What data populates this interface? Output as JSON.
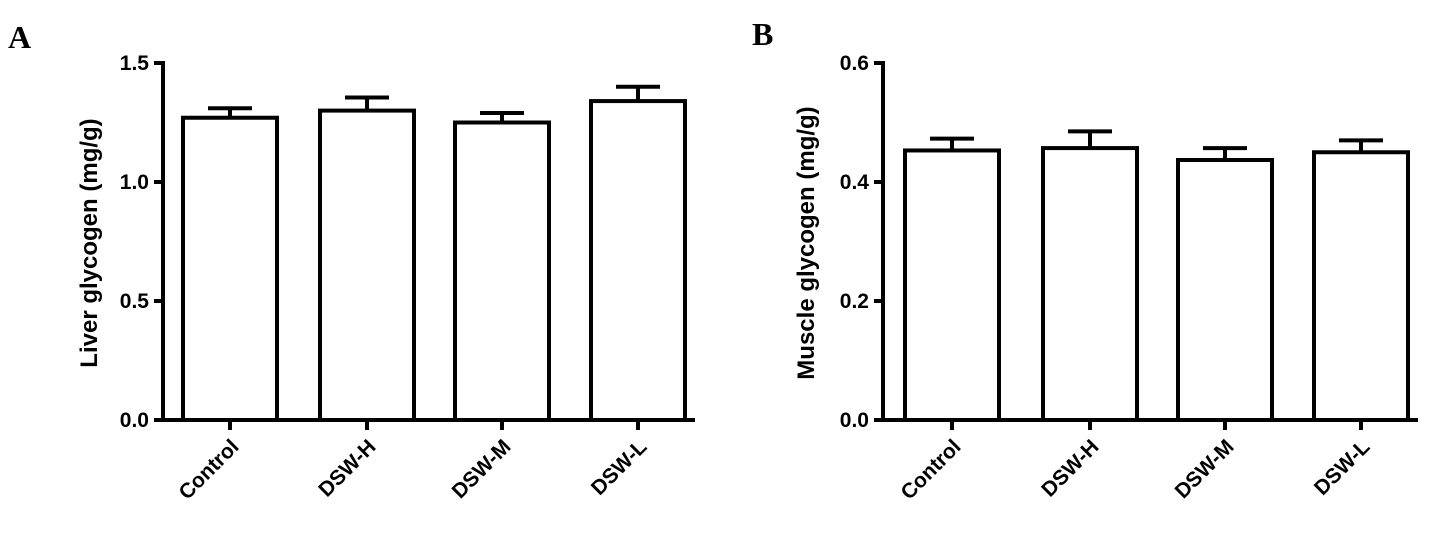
{
  "chart_data": [
    {
      "type": "bar",
      "panel": "A",
      "ylabel": "Liver glycogen (mg/g)",
      "xlabel": "",
      "ylim": [
        0,
        1.5
      ],
      "yticks": [
        0.0,
        0.5,
        1.0,
        1.5
      ],
      "ytick_labels": [
        "0.0",
        "0.5",
        "1.0",
        "1.5"
      ],
      "categories": [
        "Control",
        "DSW-H",
        "DSW-M",
        "DSW-L"
      ],
      "values": [
        1.27,
        1.3,
        1.25,
        1.34
      ],
      "errors": [
        0.04,
        0.055,
        0.04,
        0.06
      ],
      "grid": false
    },
    {
      "type": "bar",
      "panel": "B",
      "ylabel": "Muscle glycogen (mg/g)",
      "xlabel": "",
      "ylim": [
        0,
        0.6
      ],
      "yticks": [
        0.0,
        0.2,
        0.4,
        0.6
      ],
      "ytick_labels": [
        "0.0",
        "0.2",
        "0.4",
        "0.6"
      ],
      "categories": [
        "Control",
        "DSW-H",
        "DSW-M",
        "DSW-L"
      ],
      "values": [
        0.453,
        0.457,
        0.437,
        0.45
      ],
      "errors": [
        0.02,
        0.028,
        0.02,
        0.02
      ],
      "grid": false
    }
  ]
}
